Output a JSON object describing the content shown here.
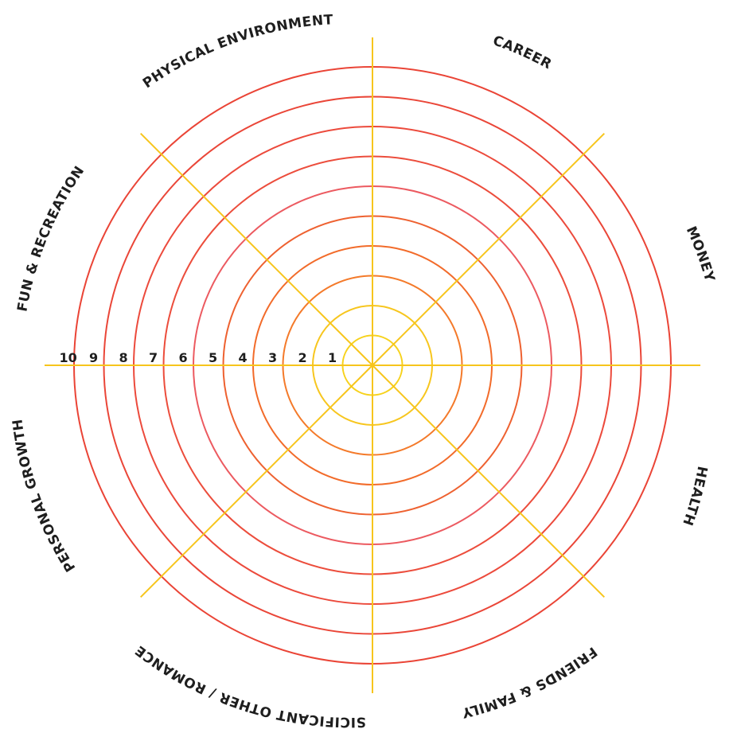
{
  "wheel": {
    "segments": [
      "CAREER",
      "MONEY",
      "HEALTH",
      "FRIENDS & FAMILY",
      "SICIFICANT OTHER / ROMANCE",
      "PERSONAL GROWTH",
      "FUN & RECREATION",
      "PHYSICAL ENVIRONMENT"
    ],
    "scale": [
      "1",
      "2",
      "3",
      "4",
      "5",
      "6",
      "7",
      "8",
      "9",
      "10"
    ],
    "ring_colors": [
      "#f7d21c",
      "#f7c61e",
      "#f47a2a",
      "#f26b2a",
      "#ee6130",
      "#ec5a60",
      "#ec4d3c",
      "#ec4a3c",
      "#ea4638",
      "#ea4436"
    ],
    "spoke_color": "#f7c51c"
  }
}
